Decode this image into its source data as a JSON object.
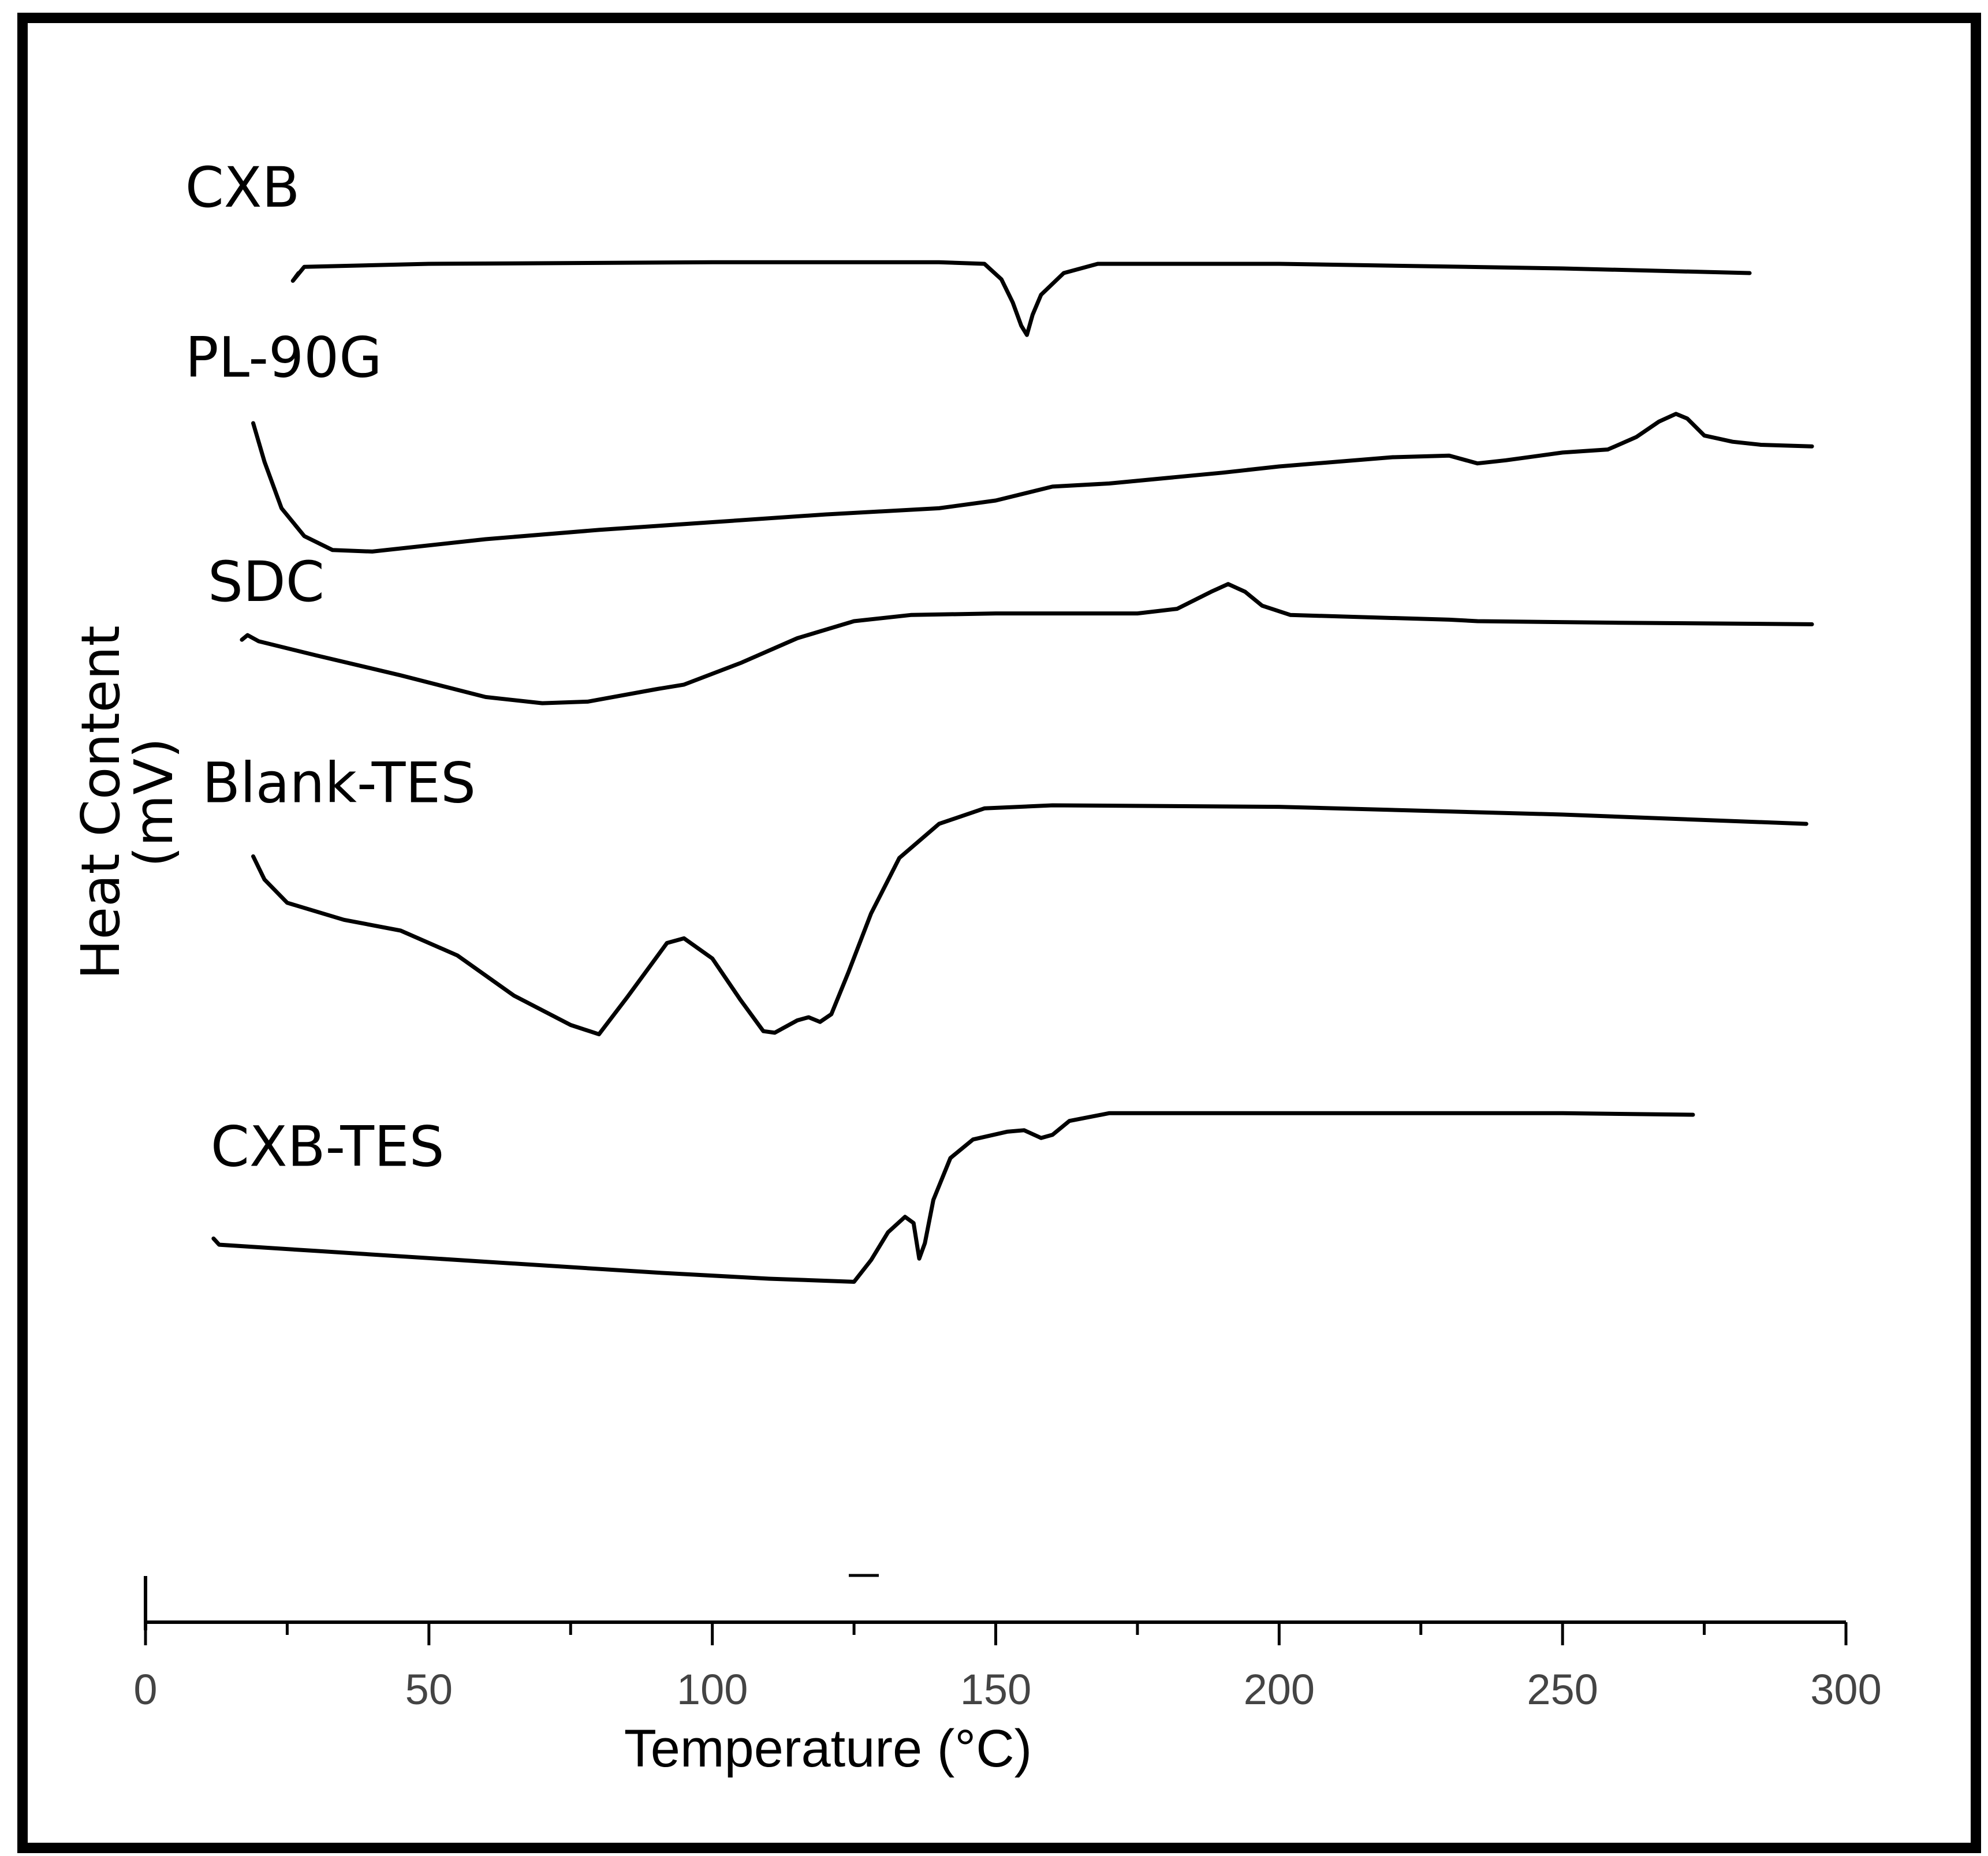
{
  "chart_data": {
    "type": "line",
    "title": "",
    "xlabel": "Temperature (°C)",
    "ylabel": "Heat Content (mV)",
    "ylabel_line1": "Heat Content",
    "ylabel_line2": "(mV)",
    "xlim": [
      0,
      300
    ],
    "ylim": [
      0,
      100
    ],
    "xticks": [
      0,
      50,
      100,
      150,
      200,
      250,
      300
    ],
    "minor_ticks": [
      25,
      75,
      125,
      175,
      225,
      275
    ],
    "grid": false,
    "legend": "none (inline series labels)",
    "series": [
      {
        "name": "CXB",
        "label_pos": [
          7,
          91.5
        ],
        "points": [
          [
            27,
            87.2
          ],
          [
            26,
            86.7
          ],
          [
            28,
            87.6
          ],
          [
            50,
            87.8
          ],
          [
            100,
            87.9
          ],
          [
            140,
            87.9
          ],
          [
            148,
            87.8
          ],
          [
            151,
            86.8
          ],
          [
            153,
            85.3
          ],
          [
            154.5,
            83.8
          ],
          [
            155.5,
            83.2
          ],
          [
            156.5,
            84.5
          ],
          [
            158,
            85.8
          ],
          [
            162,
            87.2
          ],
          [
            168,
            87.8
          ],
          [
            200,
            87.8
          ],
          [
            250,
            87.5
          ],
          [
            283,
            87.2
          ]
        ]
      },
      {
        "name": "PL-90G",
        "label_pos": [
          7,
          80.5
        ],
        "points": [
          [
            19,
            77.5
          ],
          [
            21,
            75
          ],
          [
            24,
            72
          ],
          [
            28,
            70.2
          ],
          [
            33,
            69.3
          ],
          [
            40,
            69.2
          ],
          [
            60,
            70
          ],
          [
            80,
            70.6
          ],
          [
            100,
            71.1
          ],
          [
            120,
            71.6
          ],
          [
            140,
            72
          ],
          [
            150,
            72.5
          ],
          [
            160,
            73.4
          ],
          [
            170,
            73.6
          ],
          [
            190,
            74.3
          ],
          [
            200,
            74.7
          ],
          [
            220,
            75.3
          ],
          [
            230,
            75.4
          ],
          [
            235,
            74.9
          ],
          [
            240,
            75.1
          ],
          [
            250,
            75.6
          ],
          [
            258,
            75.8
          ],
          [
            263,
            76.6
          ],
          [
            267,
            77.6
          ],
          [
            270,
            78.1
          ],
          [
            272,
            77.8
          ],
          [
            275,
            76.7
          ],
          [
            280,
            76.3
          ],
          [
            285,
            76.1
          ],
          [
            294,
            76
          ]
        ]
      },
      {
        "name": "SDC",
        "label_pos": [
          11,
          66
        ],
        "points": [
          [
            17,
            63.5
          ],
          [
            18,
            63.8
          ],
          [
            20,
            63.4
          ],
          [
            30,
            62.5
          ],
          [
            45,
            61.2
          ],
          [
            60,
            59.8
          ],
          [
            70,
            59.4
          ],
          [
            78,
            59.5
          ],
          [
            90,
            60.3
          ],
          [
            95,
            60.6
          ],
          [
            105,
            62
          ],
          [
            115,
            63.6
          ],
          [
            125,
            64.7
          ],
          [
            135,
            65.1
          ],
          [
            150,
            65.2
          ],
          [
            175,
            65.2
          ],
          [
            182,
            65.5
          ],
          [
            188,
            66.6
          ],
          [
            191,
            67.1
          ],
          [
            194,
            66.6
          ],
          [
            197,
            65.7
          ],
          [
            202,
            65.1
          ],
          [
            230,
            64.8
          ],
          [
            235,
            64.7
          ],
          [
            260,
            64.6
          ],
          [
            294,
            64.5
          ]
        ]
      },
      {
        "name": "Blank-TES",
        "label_pos": [
          10,
          53
        ],
        "points": [
          [
            19,
            49.5
          ],
          [
            21,
            48
          ],
          [
            25,
            46.5
          ],
          [
            35,
            45.4
          ],
          [
            45,
            44.7
          ],
          [
            55,
            43.1
          ],
          [
            65,
            40.5
          ],
          [
            75,
            38.6
          ],
          [
            80,
            38
          ],
          [
            85,
            40.4
          ],
          [
            92,
            43.9
          ],
          [
            95,
            44.2
          ],
          [
            100,
            42.9
          ],
          [
            105,
            40.2
          ],
          [
            109,
            38.2
          ],
          [
            111,
            38.1
          ],
          [
            115,
            38.9
          ],
          [
            117,
            39.1
          ],
          [
            119,
            38.8
          ],
          [
            121,
            39.3
          ],
          [
            124,
            42
          ],
          [
            128,
            45.8
          ],
          [
            133,
            49.4
          ],
          [
            140,
            51.6
          ],
          [
            148,
            52.6
          ],
          [
            160,
            52.8
          ],
          [
            200,
            52.7
          ],
          [
            250,
            52.2
          ],
          [
            293,
            51.6
          ]
        ]
      },
      {
        "name": "CXB-TES",
        "label_pos": [
          11.5,
          29.5
        ],
        "points": [
          [
            12,
            24.8
          ],
          [
            13,
            24.4
          ],
          [
            30,
            24
          ],
          [
            60,
            23.3
          ],
          [
            90,
            22.6
          ],
          [
            110,
            22.2
          ],
          [
            125,
            22
          ],
          [
            128,
            23.4
          ],
          [
            131,
            25.2
          ],
          [
            134,
            26.2
          ],
          [
            135.5,
            25.8
          ],
          [
            136.5,
            23.5
          ],
          [
            137.5,
            24.5
          ],
          [
            139,
            27.3
          ],
          [
            142,
            30
          ],
          [
            146,
            31.2
          ],
          [
            152,
            31.7
          ],
          [
            155,
            31.8
          ],
          [
            158,
            31.3
          ],
          [
            160,
            31.5
          ],
          [
            163,
            32.4
          ],
          [
            170,
            32.9
          ],
          [
            200,
            32.9
          ],
          [
            250,
            32.9
          ],
          [
            273,
            32.8
          ]
        ]
      }
    ]
  }
}
